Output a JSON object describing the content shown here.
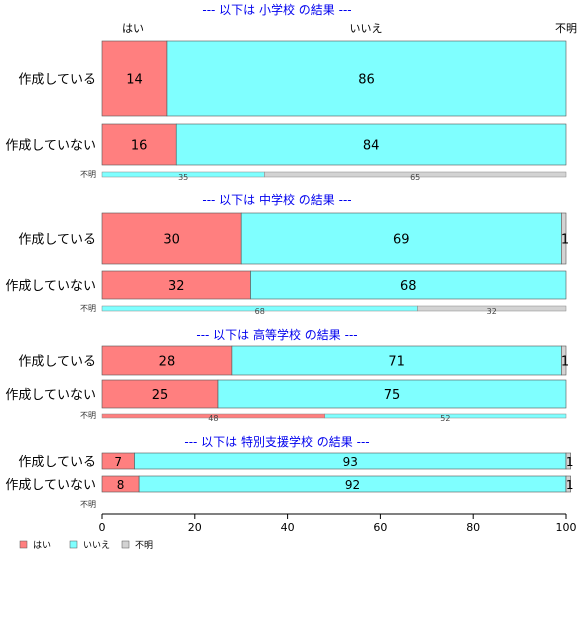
{
  "chart_data": {
    "type": "bar",
    "orientation": "horizontal",
    "stacked": true,
    "column_headers": [
      "はい",
      "いいえ",
      "不明"
    ],
    "xlim": [
      0,
      100
    ],
    "xticks": [
      0,
      20,
      40,
      60,
      80,
      100
    ],
    "series": [
      {
        "name": "はい",
        "color": "#ff7f7f"
      },
      {
        "name": "いいえ",
        "color": "#7fffff"
      },
      {
        "name": "不明",
        "color": "#d3d3d3"
      }
    ],
    "panels": [
      {
        "title": "--- 以下は 小学校 の結果 ---",
        "rows": [
          {
            "label": "作成している",
            "values": [
              14,
              86,
              0
            ]
          },
          {
            "label": "作成していない",
            "values": [
              16,
              84,
              0
            ]
          }
        ],
        "unknown_row": {
          "label": "不明",
          "values": [
            0,
            35,
            65
          ]
        }
      },
      {
        "title": "--- 以下は 中学校 の結果 ---",
        "rows": [
          {
            "label": "作成している",
            "values": [
              30,
              69,
              1
            ]
          },
          {
            "label": "作成していない",
            "values": [
              32,
              68,
              0
            ]
          }
        ],
        "unknown_row": {
          "label": "不明",
          "values": [
            0,
            68,
            32
          ]
        }
      },
      {
        "title": "--- 以下は 高等学校 の結果 ---",
        "rows": [
          {
            "label": "作成している",
            "values": [
              28,
              71,
              1
            ]
          },
          {
            "label": "作成していない",
            "values": [
              25,
              75,
              0
            ]
          }
        ],
        "unknown_row": {
          "label": "不明",
          "values": [
            48,
            52,
            0
          ]
        }
      },
      {
        "title": "--- 以下は 特別支援学校 の結果 ---",
        "rows": [
          {
            "label": "作成している",
            "values": [
              7,
              93,
              1
            ]
          },
          {
            "label": "作成していない",
            "values": [
              8,
              92,
              1
            ]
          }
        ],
        "unknown_row": {
          "label": "不明",
          "values": [
            0,
            0,
            0
          ]
        }
      }
    ],
    "legend": [
      "はい",
      "いいえ",
      "不明"
    ],
    "legend_position": "bottom-left",
    "title_color": "#0000ee"
  }
}
